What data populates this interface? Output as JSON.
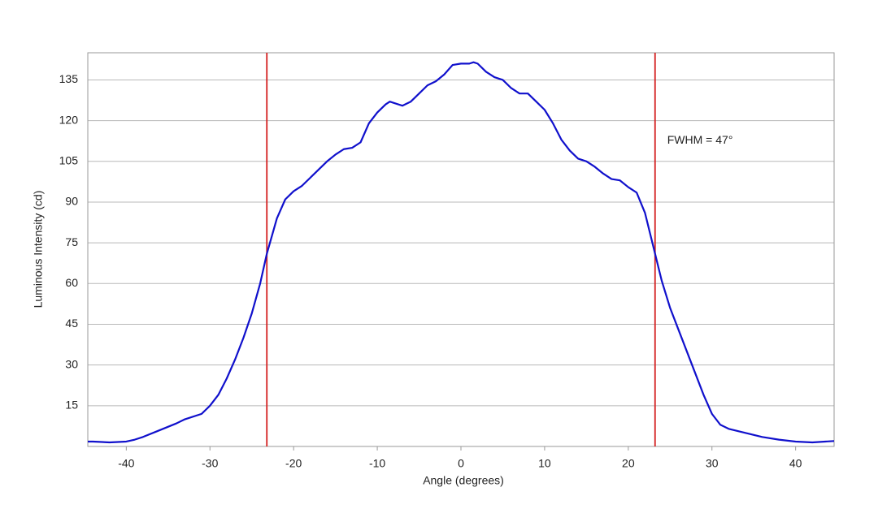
{
  "chart_data": {
    "type": "line",
    "x_label": "Angle (degrees)",
    "y_label": "Luminous Intensity (cd)",
    "annotation": "FWHM = 47°",
    "xlim": [
      -44.6,
      44.6
    ],
    "ylim": [
      0,
      145
    ],
    "xticks": [
      -40,
      -30,
      -20,
      -10,
      0,
      10,
      20,
      30,
      40
    ],
    "yticks": [
      15,
      30,
      45,
      60,
      75,
      90,
      105,
      120,
      135
    ],
    "grid": true,
    "vlines": [
      -23.2,
      23.2
    ],
    "vline_color": "#d42020",
    "series": [
      {
        "color": "#1010cc",
        "x": [
          -44.6,
          -44,
          -42,
          -40,
          -39,
          -38,
          -36,
          -34,
          -33,
          -31,
          -30,
          -29,
          -28,
          -27,
          -26,
          -25,
          -24,
          -23.2,
          -22,
          -21,
          -20,
          -19,
          -18,
          -17,
          -16,
          -15,
          -14,
          -13,
          -12,
          -11,
          -10,
          -9,
          -8.5,
          -7,
          -6,
          -5,
          -4,
          -3,
          -2,
          -1,
          0,
          1,
          1.5,
          2,
          3,
          4,
          5,
          6,
          7,
          8,
          9,
          10,
          11,
          12,
          13,
          14,
          15,
          16,
          17,
          18,
          19,
          20,
          21,
          22,
          23.2,
          24,
          25,
          26,
          27,
          28,
          29,
          30,
          31,
          32,
          34,
          36,
          38,
          40,
          42,
          44.6
        ],
        "values": [
          1.8,
          1.8,
          1.5,
          1.8,
          2.5,
          3.5,
          6,
          8.5,
          10,
          12,
          15,
          19,
          25,
          32,
          40,
          49,
          60,
          71,
          84,
          91,
          94,
          96,
          99,
          102,
          105,
          107.5,
          109.5,
          110,
          112,
          119,
          123,
          126,
          127,
          125.5,
          127,
          130,
          133,
          134.5,
          137,
          140.5,
          141,
          141,
          141.5,
          141,
          138,
          136,
          135,
          132,
          130,
          130,
          127,
          124,
          119,
          113,
          109,
          106,
          105,
          103,
          100.5,
          98.5,
          98,
          95.5,
          93.5,
          86,
          71,
          61,
          51,
          43,
          35,
          27,
          19,
          12,
          8,
          6.5,
          5,
          3.5,
          2.5,
          1.8,
          1.5,
          2
        ]
      }
    ]
  }
}
